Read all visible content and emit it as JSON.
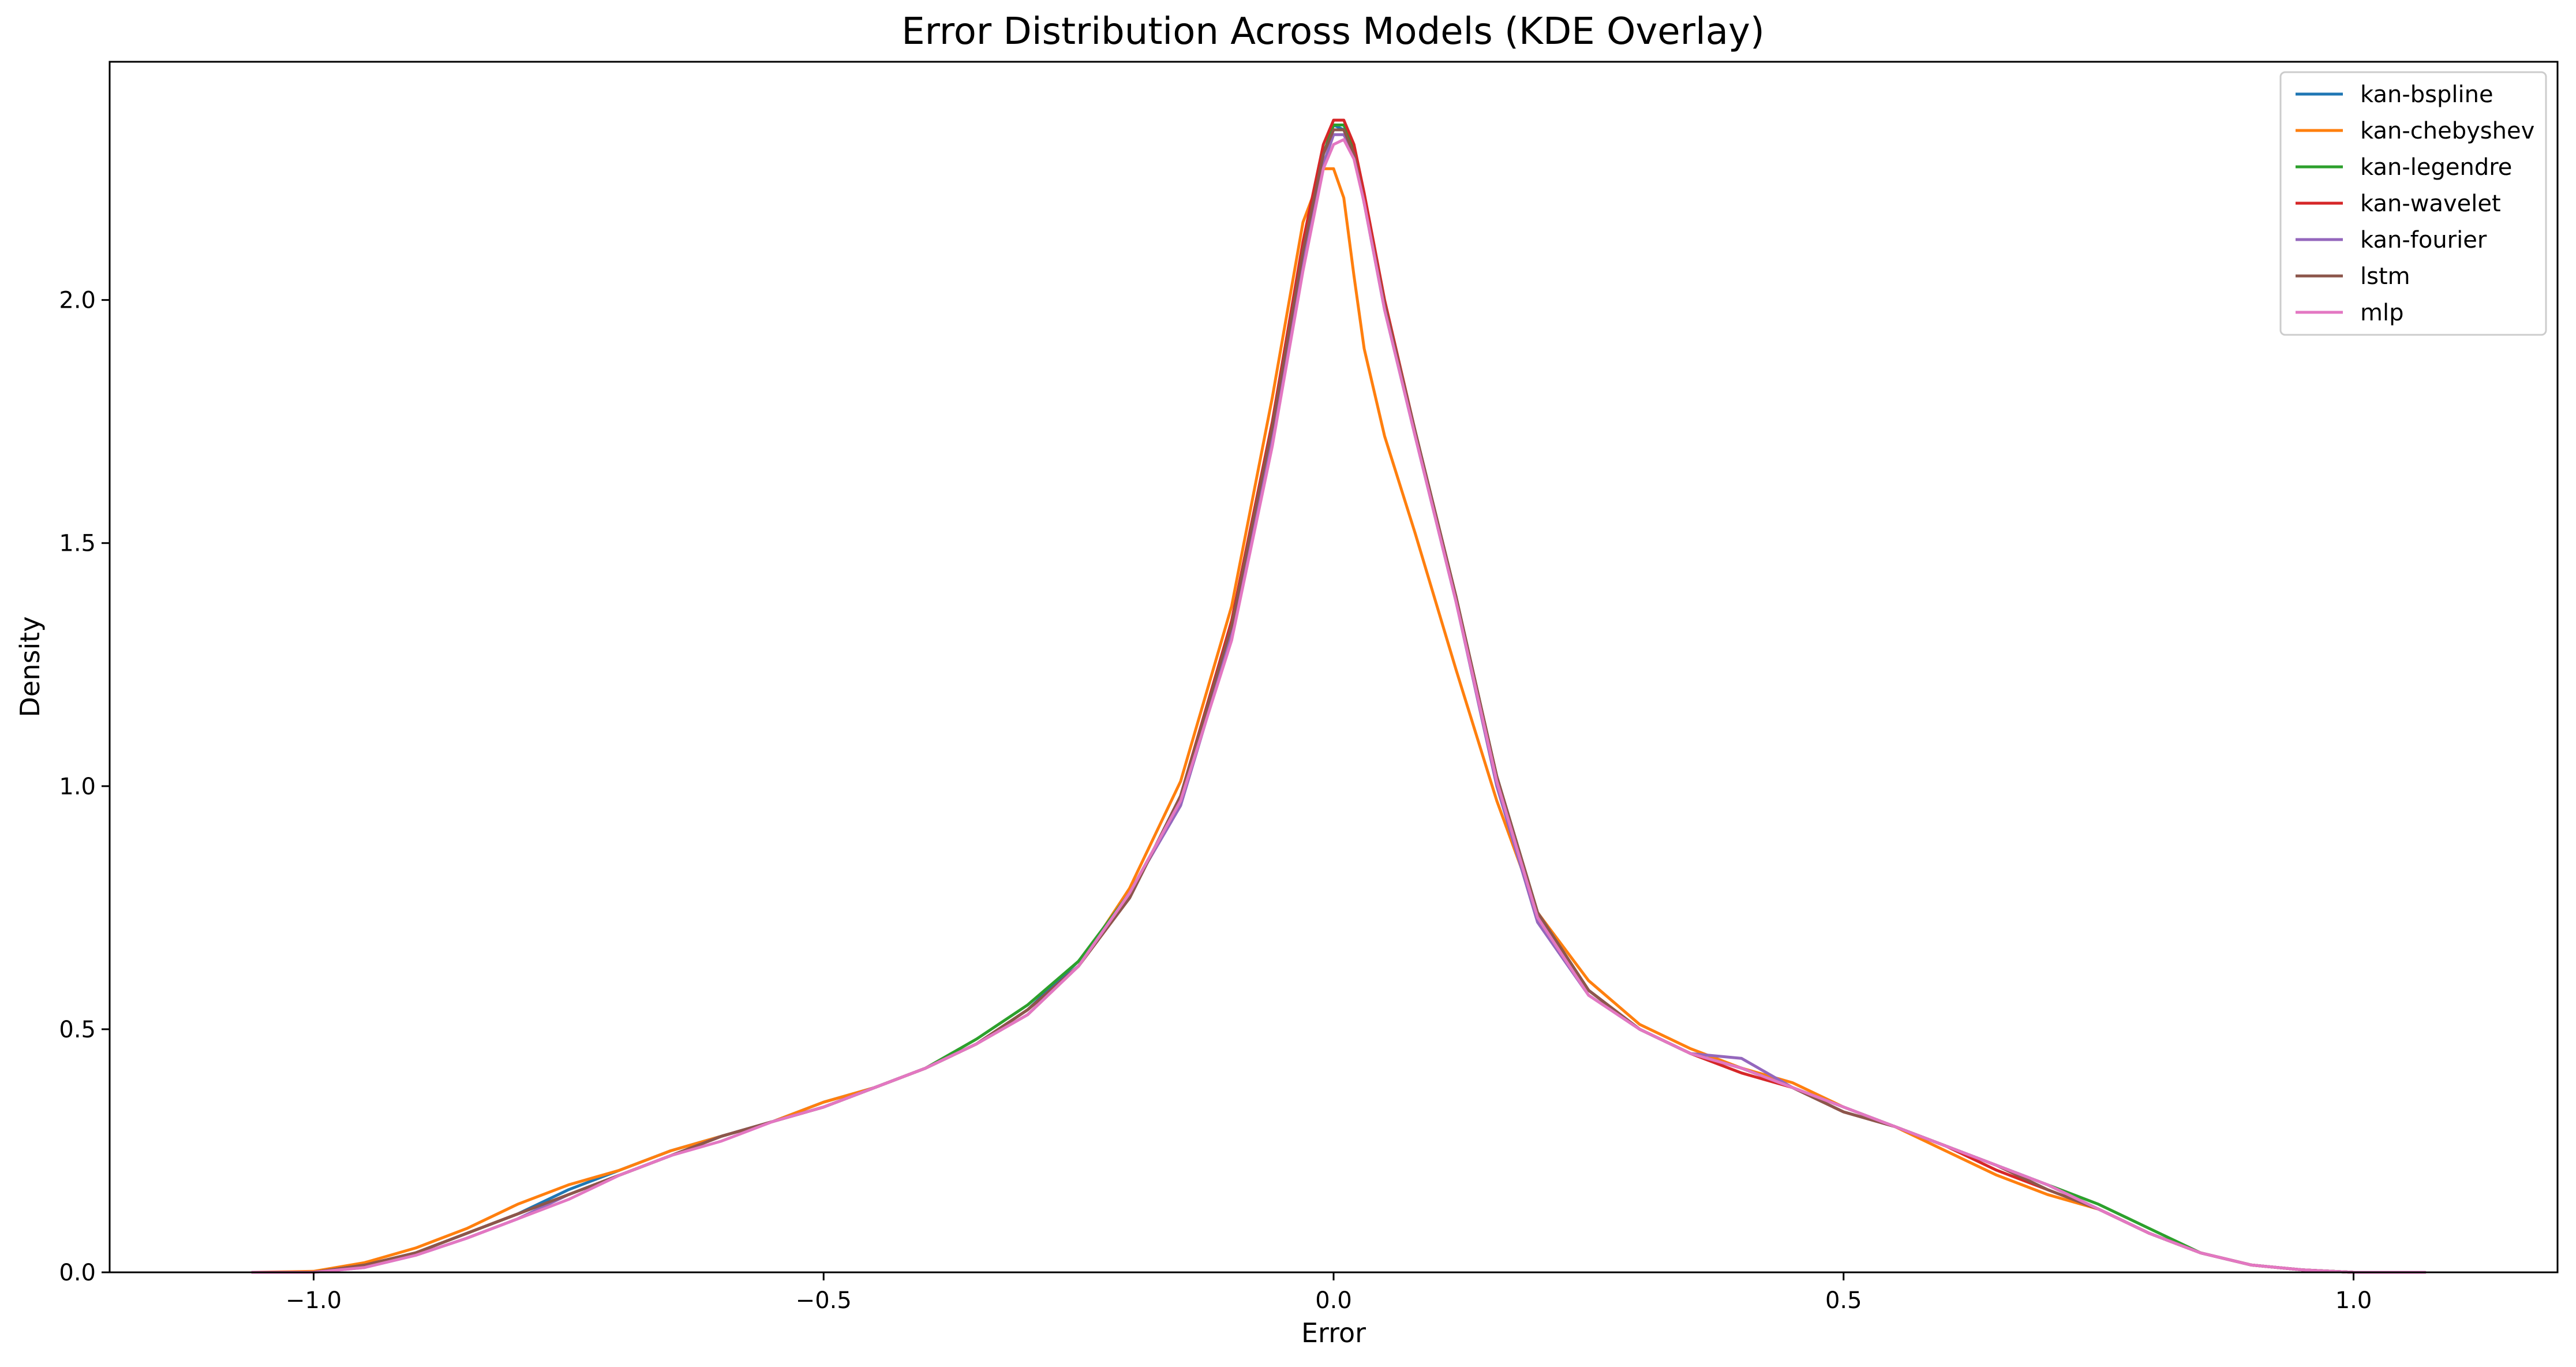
{
  "chart_data": {
    "type": "line",
    "title": "Error Distribution Across Models (KDE Overlay)",
    "xlabel": "Error",
    "ylabel": "Density",
    "xlim": [
      -1.2,
      1.2
    ],
    "ylim": [
      0,
      2.49
    ],
    "x_ticks": [
      -1.0,
      -0.5,
      0.0,
      0.5,
      1.0
    ],
    "x_tick_labels": [
      "−1.0",
      "−0.5",
      "0.0",
      "0.5",
      "1.0"
    ],
    "y_ticks": [
      0.0,
      0.5,
      1.0,
      1.5,
      2.0
    ],
    "y_tick_labels": [
      "0.0",
      "0.5",
      "1.0",
      "1.5",
      "2.0"
    ],
    "grid": false,
    "legend_position": "top-right",
    "x": [
      -1.06,
      -1.0,
      -0.95,
      -0.9,
      -0.85,
      -0.8,
      -0.75,
      -0.7,
      -0.65,
      -0.6,
      -0.55,
      -0.5,
      -0.45,
      -0.4,
      -0.35,
      -0.3,
      -0.25,
      -0.2,
      -0.15,
      -0.1,
      -0.06,
      -0.03,
      -0.01,
      0.0,
      0.01,
      0.02,
      0.03,
      0.05,
      0.08,
      0.12,
      0.16,
      0.2,
      0.25,
      0.3,
      0.35,
      0.4,
      0.45,
      0.5,
      0.55,
      0.6,
      0.65,
      0.7,
      0.75,
      0.8,
      0.85,
      0.9,
      0.95,
      1.0,
      1.07
    ],
    "series": [
      {
        "name": "kan-bspline",
        "color": "#1f77b4",
        "values": [
          0.0,
          0.0,
          0.015,
          0.04,
          0.08,
          0.12,
          0.17,
          0.21,
          0.25,
          0.28,
          0.31,
          0.35,
          0.38,
          0.42,
          0.47,
          0.54,
          0.64,
          0.77,
          0.98,
          1.33,
          1.73,
          2.1,
          2.3,
          2.36,
          2.35,
          2.3,
          2.2,
          1.98,
          1.72,
          1.38,
          1.02,
          0.74,
          0.58,
          0.5,
          0.45,
          0.42,
          0.38,
          0.33,
          0.3,
          0.26,
          0.22,
          0.18,
          0.13,
          0.08,
          0.04,
          0.015,
          0.005,
          0.0,
          0.0
        ]
      },
      {
        "name": "kan-chebyshev",
        "color": "#ff7f0e",
        "values": [
          0.0,
          0.002,
          0.02,
          0.05,
          0.09,
          0.14,
          0.18,
          0.21,
          0.25,
          0.28,
          0.31,
          0.35,
          0.38,
          0.42,
          0.47,
          0.53,
          0.63,
          0.79,
          1.01,
          1.37,
          1.8,
          2.16,
          2.27,
          2.27,
          2.21,
          2.05,
          1.9,
          1.72,
          1.52,
          1.24,
          0.97,
          0.74,
          0.6,
          0.51,
          0.46,
          0.42,
          0.39,
          0.34,
          0.3,
          0.25,
          0.2,
          0.16,
          0.13,
          0.08,
          0.04,
          0.015,
          0.005,
          0.0,
          0.0
        ]
      },
      {
        "name": "kan-legendre",
        "color": "#2ca02c",
        "values": [
          0.0,
          0.0,
          0.015,
          0.04,
          0.08,
          0.12,
          0.16,
          0.2,
          0.24,
          0.28,
          0.31,
          0.34,
          0.38,
          0.42,
          0.48,
          0.55,
          0.64,
          0.78,
          0.97,
          1.34,
          1.74,
          2.09,
          2.3,
          2.36,
          2.36,
          2.31,
          2.2,
          1.99,
          1.73,
          1.39,
          1.02,
          0.74,
          0.58,
          0.5,
          0.45,
          0.42,
          0.38,
          0.34,
          0.3,
          0.26,
          0.22,
          0.18,
          0.14,
          0.09,
          0.04,
          0.015,
          0.005,
          0.0,
          0.0
        ]
      },
      {
        "name": "kan-wavelet",
        "color": "#d62728",
        "values": [
          0.0,
          0.0,
          0.015,
          0.04,
          0.08,
          0.12,
          0.16,
          0.2,
          0.24,
          0.28,
          0.31,
          0.34,
          0.38,
          0.42,
          0.47,
          0.54,
          0.63,
          0.77,
          0.98,
          1.34,
          1.75,
          2.12,
          2.32,
          2.37,
          2.37,
          2.32,
          2.22,
          2.0,
          1.73,
          1.39,
          1.02,
          0.74,
          0.58,
          0.5,
          0.45,
          0.41,
          0.38,
          0.33,
          0.3,
          0.26,
          0.21,
          0.17,
          0.13,
          0.08,
          0.04,
          0.015,
          0.005,
          0.0,
          0.0
        ]
      },
      {
        "name": "kan-fourier",
        "color": "#9467bd",
        "values": [
          0.0,
          0.0,
          0.01,
          0.035,
          0.07,
          0.11,
          0.16,
          0.2,
          0.24,
          0.28,
          0.31,
          0.34,
          0.38,
          0.42,
          0.47,
          0.53,
          0.63,
          0.78,
          0.96,
          1.31,
          1.72,
          2.08,
          2.28,
          2.34,
          2.34,
          2.3,
          2.2,
          1.98,
          1.72,
          1.38,
          1.0,
          0.72,
          0.57,
          0.5,
          0.45,
          0.44,
          0.38,
          0.34,
          0.3,
          0.26,
          0.22,
          0.18,
          0.13,
          0.08,
          0.04,
          0.015,
          0.005,
          0.0,
          0.0
        ]
      },
      {
        "name": "lstm",
        "color": "#8c564b",
        "values": [
          0.0,
          0.0,
          0.015,
          0.04,
          0.08,
          0.12,
          0.16,
          0.2,
          0.24,
          0.28,
          0.31,
          0.34,
          0.38,
          0.42,
          0.47,
          0.54,
          0.63,
          0.77,
          0.98,
          1.33,
          1.74,
          2.1,
          2.3,
          2.35,
          2.35,
          2.3,
          2.2,
          1.99,
          1.73,
          1.39,
          1.02,
          0.74,
          0.58,
          0.5,
          0.45,
          0.42,
          0.38,
          0.33,
          0.3,
          0.26,
          0.22,
          0.17,
          0.13,
          0.08,
          0.04,
          0.015,
          0.005,
          0.0,
          0.0
        ]
      },
      {
        "name": "mlp",
        "color": "#e377c2",
        "values": [
          0.0,
          0.0,
          0.01,
          0.035,
          0.07,
          0.11,
          0.15,
          0.2,
          0.24,
          0.27,
          0.31,
          0.34,
          0.38,
          0.42,
          0.47,
          0.53,
          0.63,
          0.78,
          0.97,
          1.3,
          1.7,
          2.06,
          2.27,
          2.32,
          2.33,
          2.29,
          2.2,
          1.98,
          1.72,
          1.38,
          1.01,
          0.73,
          0.57,
          0.5,
          0.45,
          0.42,
          0.38,
          0.34,
          0.3,
          0.26,
          0.22,
          0.18,
          0.13,
          0.08,
          0.04,
          0.015,
          0.005,
          0.0,
          0.0
        ]
      }
    ]
  }
}
